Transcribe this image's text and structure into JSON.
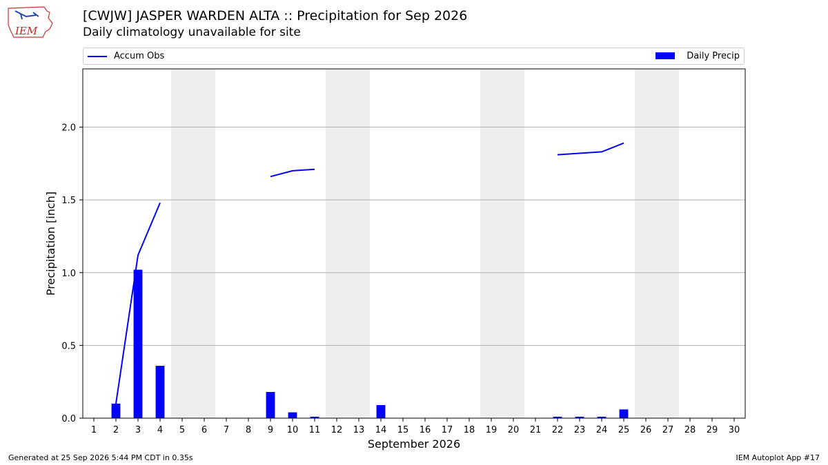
{
  "header": {
    "title": "[CWJW] JASPER WARDEN  ALTA :: Precipitation for Sep 2026",
    "subtitle": "Daily climatology unavailable for site"
  },
  "logo": {
    "text": "IEM"
  },
  "legend": {
    "line_label": "Accum Obs",
    "bar_label": "Daily Precip"
  },
  "footer": {
    "generated": "Generated at 25 Sep 2026 5:44 PM CDT in 0.35s",
    "app": "IEM Autoplot App #17"
  },
  "colors": {
    "series": "#0000ff",
    "weekend_band": "#eeeeee",
    "grid": "#b0b0b0"
  },
  "chart_data": {
    "type": "bar",
    "xlabel": "September 2026",
    "ylabel": "Precipitation [inch]",
    "xlim": [
      0.5,
      30.5
    ],
    "ylim": [
      0,
      2.4
    ],
    "yticks": [
      0.0,
      0.5,
      1.0,
      1.5,
      2.0
    ],
    "ytick_labels": [
      "0.0",
      "0.5",
      "1.0",
      "1.5",
      "2.0"
    ],
    "categories": [
      "1",
      "2",
      "3",
      "4",
      "5",
      "6",
      "7",
      "8",
      "9",
      "10",
      "11",
      "12",
      "13",
      "14",
      "15",
      "16",
      "17",
      "18",
      "19",
      "20",
      "21",
      "22",
      "23",
      "24",
      "25",
      "26",
      "27",
      "28",
      "29",
      "30"
    ],
    "grid": "horizontal",
    "legend_position": "top",
    "weekend_bands": [
      [
        5,
        6
      ],
      [
        12,
        13
      ],
      [
        19,
        20
      ],
      [
        26,
        27
      ]
    ],
    "series": [
      {
        "name": "Daily Precip",
        "type": "bar",
        "x": [
          2,
          3,
          4,
          9,
          10,
          11,
          14,
          22,
          23,
          24,
          25
        ],
        "values": [
          0.1,
          1.02,
          0.36,
          0.18,
          0.04,
          0.01,
          0.09,
          0.01,
          0.01,
          0.01,
          0.06
        ]
      },
      {
        "name": "Accum Obs",
        "type": "line",
        "segments": [
          {
            "x": [
              2,
              3,
              4
            ],
            "values": [
              0.1,
              1.12,
              1.48
            ]
          },
          {
            "x": [
              9,
              10,
              11
            ],
            "values": [
              1.66,
              1.7,
              1.71
            ]
          },
          {
            "x": [
              22,
              23,
              24,
              25
            ],
            "values": [
              1.81,
              1.82,
              1.83,
              1.89
            ]
          }
        ]
      }
    ]
  }
}
